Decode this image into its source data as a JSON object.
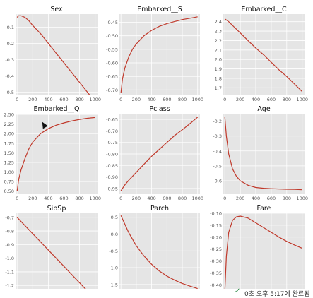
{
  "chart_data": [
    {
      "type": "line",
      "title": "Sex",
      "xlim": [
        -20,
        1030
      ],
      "ylim": [
        -0.52,
        -0.02
      ],
      "xticks": [
        0,
        200,
        400,
        600,
        800,
        1000
      ],
      "yticks": [
        -0.1,
        -0.2,
        -0.3,
        -0.4,
        -0.5
      ],
      "ytick_labels": [
        "-0.1",
        "-0.2",
        "-0.3",
        "-0.4",
        "-0.5"
      ],
      "x": [
        0,
        20,
        50,
        100,
        150,
        200,
        300,
        400,
        500,
        600,
        700,
        800,
        900,
        1000
      ],
      "y": [
        -0.04,
        -0.03,
        -0.03,
        -0.04,
        -0.06,
        -0.09,
        -0.14,
        -0.2,
        -0.26,
        -0.32,
        -0.38,
        -0.44,
        -0.5,
        -0.56
      ]
    },
    {
      "type": "line",
      "title": "Embarked__S",
      "xlim": [
        -20,
        1030
      ],
      "ylim": [
        -0.72,
        -0.42
      ],
      "xticks": [
        0,
        200,
        400,
        600,
        800,
        1000
      ],
      "yticks": [
        -0.45,
        -0.5,
        -0.55,
        -0.6,
        -0.65,
        -0.7
      ],
      "ytick_labels": [
        "-0.45",
        "-0.50",
        "-0.55",
        "-0.60",
        "-0.65",
        "-0.70"
      ],
      "x": [
        0,
        20,
        50,
        100,
        150,
        200,
        300,
        400,
        500,
        600,
        700,
        800,
        900,
        1000
      ],
      "y": [
        -0.71,
        -0.66,
        -0.62,
        -0.58,
        -0.55,
        -0.53,
        -0.5,
        -0.48,
        -0.465,
        -0.455,
        -0.447,
        -0.44,
        -0.435,
        -0.43
      ]
    },
    {
      "type": "line",
      "title": "Embarked__C",
      "xlim": [
        -20,
        1030
      ],
      "ylim": [
        1.62,
        2.48
      ],
      "xticks": [
        0,
        200,
        400,
        600,
        800,
        1000
      ],
      "yticks": [
        2.4,
        2.3,
        2.2,
        2.1,
        2.0,
        1.9,
        1.8,
        1.7
      ],
      "ytick_labels": [
        "2.4",
        "2.3",
        "2.2",
        "2.1",
        "2.0",
        "1.9",
        "1.8",
        "1.7"
      ],
      "x": [
        0,
        50,
        100,
        200,
        300,
        400,
        500,
        600,
        700,
        800,
        900,
        1000
      ],
      "y": [
        2.43,
        2.4,
        2.36,
        2.28,
        2.2,
        2.12,
        2.05,
        1.97,
        1.89,
        1.82,
        1.74,
        1.66
      ]
    },
    {
      "type": "line",
      "title": "Embarked__Q",
      "xlim": [
        -20,
        1030
      ],
      "ylim": [
        0.42,
        2.52
      ],
      "xticks": [
        0,
        200,
        400,
        600,
        800,
        1000
      ],
      "yticks": [
        2.5,
        2.25,
        2.0,
        1.75,
        1.5,
        1.25,
        1.0,
        0.75,
        0.5
      ],
      "ytick_labels": [
        "2.50",
        "2.25",
        "2.00",
        "1.75",
        "1.50",
        "1.25",
        "1.00",
        "0.75",
        "0.50"
      ],
      "x": [
        0,
        20,
        50,
        100,
        150,
        200,
        300,
        400,
        500,
        600,
        700,
        800,
        900,
        1000
      ],
      "y": [
        0.5,
        0.8,
        1.05,
        1.35,
        1.6,
        1.78,
        2.0,
        2.13,
        2.22,
        2.28,
        2.33,
        2.37,
        2.4,
        2.42
      ]
    },
    {
      "type": "line",
      "title": "Pclass",
      "xlim": [
        -20,
        1030
      ],
      "ylim": [
        -0.975,
        -0.625
      ],
      "xticks": [
        0,
        200,
        400,
        600,
        800,
        1000
      ],
      "yticks": [
        -0.65,
        -0.7,
        -0.75,
        -0.8,
        -0.85,
        -0.9,
        -0.95
      ],
      "ytick_labels": [
        "-0.65",
        "-0.70",
        "-0.75",
        "-0.80",
        "-0.85",
        "-0.90",
        "-0.95"
      ],
      "x": [
        0,
        50,
        100,
        200,
        300,
        400,
        500,
        600,
        700,
        800,
        900,
        1000
      ],
      "y": [
        -0.96,
        -0.935,
        -0.915,
        -0.88,
        -0.845,
        -0.81,
        -0.78,
        -0.75,
        -0.72,
        -0.695,
        -0.668,
        -0.64
      ]
    },
    {
      "type": "line",
      "title": "Age",
      "xlim": [
        -20,
        1030
      ],
      "ylim": [
        -0.69,
        -0.15
      ],
      "xticks": [
        0,
        200,
        400,
        600,
        800,
        1000
      ],
      "yticks": [
        -0.2,
        -0.3,
        -0.4,
        -0.5,
        -0.6
      ],
      "ytick_labels": [
        "-0.2",
        "-0.3",
        "-0.4",
        "-0.5",
        "-0.6"
      ],
      "x": [
        0,
        20,
        50,
        100,
        150,
        200,
        300,
        400,
        500,
        600,
        700,
        800,
        900,
        1000
      ],
      "y": [
        -0.17,
        -0.3,
        -0.42,
        -0.52,
        -0.57,
        -0.6,
        -0.63,
        -0.645,
        -0.65,
        -0.653,
        -0.655,
        -0.657,
        -0.658,
        -0.66
      ]
    },
    {
      "type": "line",
      "title": "SibSp",
      "xlim": [
        -20,
        1030
      ],
      "ylim": [
        -1.23,
        -0.67
      ],
      "xticks": [
        0,
        200,
        400,
        600,
        800,
        1000
      ],
      "yticks": [
        -0.7,
        -0.8,
        -0.9,
        -1.0,
        -1.1,
        -1.2
      ],
      "ytick_labels": [
        "-0.7",
        "-0.8",
        "-0.9",
        "-1.0",
        "-1.1",
        "-1.2"
      ],
      "x": [
        0,
        100,
        200,
        300,
        400,
        500,
        600,
        700,
        800,
        900,
        1000
      ],
      "y": [
        -0.7,
        -0.76,
        -0.82,
        -0.88,
        -0.94,
        -1.0,
        -1.06,
        -1.12,
        -1.18,
        -1.24,
        -1.3
      ]
    },
    {
      "type": "line",
      "title": "Parch",
      "xlim": [
        -20,
        1030
      ],
      "ylim": [
        -1.65,
        0.62
      ],
      "xticks": [
        0,
        200,
        400,
        600,
        800,
        1000
      ],
      "yticks": [
        0.5,
        0.0,
        -0.5,
        -1.0,
        -1.5
      ],
      "ytick_labels": [
        "0.5",
        "0.0",
        "-0.5",
        "-1.0",
        "-1.5"
      ],
      "x": [
        0,
        50,
        100,
        200,
        300,
        400,
        500,
        600,
        700,
        800,
        900,
        1000
      ],
      "y": [
        0.55,
        0.3,
        0.05,
        -0.35,
        -0.65,
        -0.9,
        -1.1,
        -1.25,
        -1.37,
        -1.47,
        -1.55,
        -1.62
      ]
    },
    {
      "type": "line",
      "title": "Fare",
      "xlim": [
        -20,
        1030
      ],
      "ylim": [
        -0.42,
        -0.1
      ],
      "xticks": [
        0,
        200,
        400,
        600,
        800,
        1000
      ],
      "yticks": [
        -0.1,
        -0.15,
        -0.2,
        -0.25,
        -0.3,
        -0.35,
        -0.4
      ],
      "ytick_labels": [
        "-0.10",
        "-0.15",
        "-0.20",
        "-0.25",
        "-0.30",
        "-0.35",
        "-0.40"
      ],
      "x": [
        0,
        20,
        50,
        100,
        150,
        200,
        300,
        400,
        500,
        600,
        700,
        800,
        900,
        1000
      ],
      "y": [
        -0.43,
        -0.28,
        -0.18,
        -0.13,
        -0.115,
        -0.112,
        -0.12,
        -0.14,
        -0.16,
        -0.18,
        -0.2,
        -0.218,
        -0.233,
        -0.247
      ]
    }
  ],
  "style": {
    "line_color": "#c0392b",
    "plot_bg": "#e5e5e5",
    "grid_color": "#ffffff",
    "tick_color": "#555555"
  },
  "status": {
    "check_icon": "check-icon",
    "text": "0초     오후 5:17에 완료됨"
  }
}
